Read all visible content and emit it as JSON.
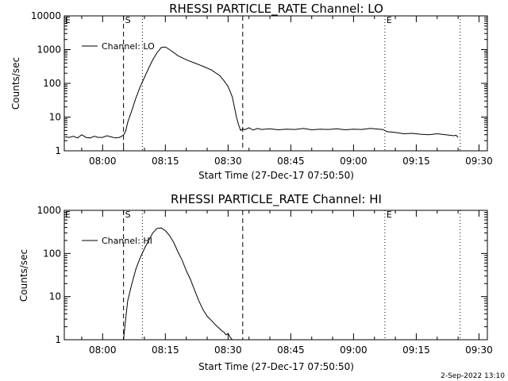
{
  "footer_timestamp": "2-Sep-2022 13:10",
  "chart_data": [
    {
      "type": "line",
      "title": "RHESSI PARTICLE_RATE Channel: LO",
      "xlabel": "Start Time (27-Dec-17 07:50:50)",
      "ylabel": "Counts/sec",
      "yscale": "log",
      "ylim": [
        1,
        10000
      ],
      "xlim": [
        "07:50:50",
        "09:32:00"
      ],
      "x_ticks": [
        "08:00",
        "08:15",
        "08:30",
        "08:45",
        "09:00",
        "09:15",
        "09:30"
      ],
      "y_ticks": [
        "1",
        "10",
        "100",
        "1000",
        "10000"
      ],
      "legend": {
        "position": "top-left",
        "entries": [
          "Channel: LO"
        ]
      },
      "vlines": [
        {
          "x": "08:05:00",
          "style": "dashed",
          "label": "S"
        },
        {
          "x": "08:09:30",
          "style": "dotted",
          "label": ""
        },
        {
          "x": "08:33:30",
          "style": "dashed",
          "label": ""
        },
        {
          "x": "09:07:30",
          "style": "dotted",
          "label": "E"
        },
        {
          "x": "09:25:30",
          "style": "dotted",
          "label": ""
        }
      ],
      "corner_marker": "E",
      "series": [
        {
          "name": "Channel: LO",
          "x": [
            "07:51:00",
            "07:52:00",
            "07:53:00",
            "07:54:00",
            "07:55:00",
            "07:56:00",
            "07:57:00",
            "07:58:00",
            "07:59:00",
            "08:00:00",
            "08:01:00",
            "08:02:00",
            "08:03:00",
            "08:04:00",
            "08:05:00",
            "08:05:30",
            "08:06:00",
            "08:07:00",
            "08:08:00",
            "08:09:00",
            "08:10:00",
            "08:11:00",
            "08:12:00",
            "08:13:00",
            "08:14:00",
            "08:15:00",
            "08:16:00",
            "08:17:00",
            "08:18:00",
            "08:20:00",
            "08:22:00",
            "08:24:00",
            "08:26:00",
            "08:28:00",
            "08:29:00",
            "08:30:00",
            "08:31:00",
            "08:31:30",
            "08:32:00",
            "08:32:30",
            "08:33:00",
            "08:33:30",
            "08:34:00",
            "08:35:00",
            "08:36:00",
            "08:37:00",
            "08:38:00",
            "08:40:00",
            "08:42:00",
            "08:44:00",
            "08:46:00",
            "08:48:00",
            "08:50:00",
            "08:52:00",
            "08:54:00",
            "08:56:00",
            "08:58:00",
            "09:00:00",
            "09:02:00",
            "09:04:00",
            "09:06:00",
            "09:07:00",
            "09:08:00",
            "09:10:00",
            "09:12:00",
            "09:14:00",
            "09:16:00",
            "09:18:00",
            "09:20:00",
            "09:22:00",
            "09:24:00",
            "09:24:30",
            "09:25:00"
          ],
          "y": [
            2.6,
            2.5,
            2.7,
            2.4,
            3.0,
            2.5,
            2.4,
            2.7,
            2.5,
            2.5,
            2.8,
            2.6,
            2.4,
            2.5,
            2.9,
            3.8,
            7,
            16,
            38,
            80,
            150,
            280,
            500,
            800,
            1150,
            1200,
            1000,
            820,
            660,
            500,
            400,
            320,
            250,
            170,
            120,
            80,
            40,
            20,
            10,
            6,
            4,
            4.5,
            4.2,
            4.8,
            4.1,
            4.6,
            4.3,
            4.5,
            4.2,
            4.4,
            4.3,
            4.6,
            4.2,
            4.4,
            4.3,
            4.5,
            4.2,
            4.4,
            4.3,
            4.6,
            4.4,
            4.3,
            3.7,
            3.5,
            3.2,
            3.3,
            3.1,
            3.0,
            3.2,
            3.0,
            2.8,
            2.9,
            2.5
          ]
        }
      ]
    },
    {
      "type": "line",
      "title": "RHESSI PARTICLE_RATE Channel: HI",
      "xlabel": "Start Time (27-Dec-17 07:50:50)",
      "ylabel": "Counts/sec",
      "yscale": "log",
      "ylim": [
        1,
        1000
      ],
      "xlim": [
        "07:50:50",
        "09:32:00"
      ],
      "x_ticks": [
        "08:00",
        "08:15",
        "08:30",
        "08:45",
        "09:00",
        "09:15",
        "09:30"
      ],
      "y_ticks": [
        "1",
        "10",
        "100",
        "1000"
      ],
      "legend": {
        "position": "top-left",
        "entries": [
          "Channel: HI"
        ]
      },
      "vlines": [
        {
          "x": "08:05:00",
          "style": "dashed",
          "label": "S"
        },
        {
          "x": "08:09:30",
          "style": "dotted",
          "label": ""
        },
        {
          "x": "08:33:30",
          "style": "dashed",
          "label": ""
        },
        {
          "x": "09:07:30",
          "style": "dotted",
          "label": "E"
        },
        {
          "x": "09:25:30",
          "style": "dotted",
          "label": ""
        }
      ],
      "corner_marker": "E",
      "series": [
        {
          "name": "Channel: HI",
          "x": [
            "08:05:00",
            "08:05:30",
            "08:06:00",
            "08:07:00",
            "08:08:00",
            "08:09:00",
            "08:10:00",
            "08:11:00",
            "08:12:00",
            "08:13:00",
            "08:14:00",
            "08:15:00",
            "08:16:00",
            "08:17:00",
            "08:18:00",
            "08:19:00",
            "08:20:00",
            "08:21:00",
            "08:22:00",
            "08:23:00",
            "08:24:00",
            "08:25:00",
            "08:26:00",
            "08:27:00",
            "08:28:00",
            "08:28:30",
            "08:29:00",
            "08:29:30",
            "08:30:00",
            "08:30:30",
            "08:31:00"
          ],
          "y": [
            1,
            3,
            8,
            20,
            45,
            80,
            130,
            200,
            300,
            380,
            390,
            340,
            260,
            180,
            110,
            70,
            40,
            25,
            14,
            8,
            5,
            3.5,
            2.8,
            2.2,
            1.8,
            1.6,
            1.5,
            1.3,
            1.4,
            1.15,
            1
          ]
        }
      ]
    }
  ]
}
